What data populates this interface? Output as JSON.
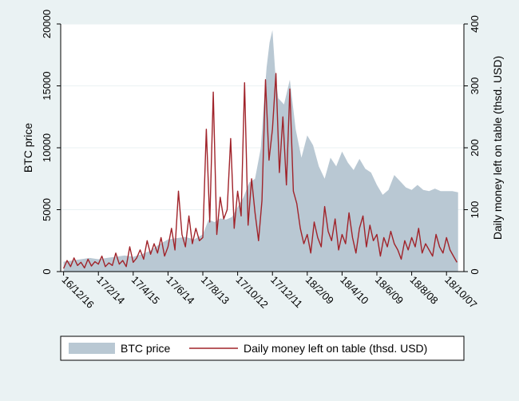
{
  "chart_data": {
    "type": "area+line",
    "title": "",
    "xlabel": "",
    "ylabel_left": "BTC price",
    "ylabel_right": "Daily money left on table (thsd. USD)",
    "ylim_left": [
      0,
      20000
    ],
    "ylim_right": [
      0,
      400
    ],
    "left_ticks": [
      0,
      5000,
      10000,
      15000,
      20000
    ],
    "right_ticks": [
      0,
      100,
      200,
      300,
      400
    ],
    "x_tick_labels": [
      "16/12/16",
      "17/2/14",
      "17/4/15",
      "17/6/14",
      "17/8/13",
      "17/10/12",
      "17/12/11",
      "18/2/09",
      "18/4/10",
      "18/6/09",
      "18/8/08",
      "18/10/07"
    ],
    "x_tick_positions": [
      0,
      60,
      120,
      180,
      240,
      300,
      360,
      420,
      480,
      540,
      600,
      660
    ],
    "x_range": [
      -5,
      690
    ],
    "legend": [
      "BTC price",
      "Daily money left on table (thsd. USD)"
    ],
    "legend_position": "bottom",
    "colors": {
      "area": "#b9c8d3",
      "line": "#a0232a",
      "background": "#eaf2f3",
      "plot": "#ffffff"
    },
    "series": [
      {
        "name": "BTC price",
        "axis": "left",
        "style": "area",
        "x": [
          0,
          15,
          30,
          45,
          60,
          75,
          90,
          105,
          120,
          135,
          150,
          165,
          180,
          195,
          210,
          225,
          240,
          250,
          260,
          270,
          280,
          290,
          300,
          310,
          320,
          330,
          340,
          345,
          350,
          355,
          360,
          365,
          370,
          380,
          390,
          400,
          410,
          420,
          430,
          440,
          450,
          460,
          470,
          480,
          490,
          500,
          510,
          520,
          530,
          540,
          550,
          560,
          570,
          580,
          590,
          600,
          610,
          620,
          630,
          640,
          650,
          660,
          670,
          680
        ],
        "values": [
          800,
          900,
          1000,
          1100,
          1000,
          1100,
          1200,
          1300,
          1200,
          1400,
          1700,
          2200,
          2600,
          2700,
          2800,
          2600,
          3000,
          4200,
          4000,
          4300,
          4200,
          4400,
          5200,
          6000,
          7200,
          7500,
          10000,
          13500,
          16500,
          18500,
          19500,
          16000,
          14000,
          13500,
          15500,
          11500,
          9200,
          11000,
          10200,
          8500,
          7500,
          9200,
          8500,
          9700,
          8800,
          8200,
          9100,
          8300,
          8000,
          7000,
          6200,
          6600,
          7800,
          7300,
          6800,
          6600,
          7000,
          6600,
          6500,
          6700,
          6500,
          6500,
          6500,
          6400
        ]
      },
      {
        "name": "Daily money left on table (thsd. USD)",
        "axis": "right",
        "style": "line",
        "x": [
          0,
          6,
          12,
          18,
          24,
          30,
          36,
          42,
          48,
          54,
          60,
          66,
          72,
          78,
          84,
          90,
          96,
          102,
          108,
          114,
          120,
          126,
          132,
          138,
          144,
          150,
          156,
          162,
          168,
          174,
          180,
          186,
          192,
          198,
          204,
          210,
          216,
          222,
          228,
          234,
          240,
          246,
          252,
          258,
          264,
          270,
          276,
          282,
          288,
          294,
          300,
          306,
          312,
          318,
          324,
          330,
          336,
          342,
          348,
          354,
          360,
          366,
          372,
          378,
          384,
          390,
          396,
          402,
          408,
          414,
          420,
          426,
          432,
          438,
          444,
          450,
          456,
          462,
          468,
          474,
          480,
          486,
          492,
          498,
          504,
          510,
          516,
          522,
          528,
          534,
          540,
          546,
          552,
          558,
          564,
          570,
          576,
          582,
          588,
          594,
          600,
          606,
          612,
          618,
          624,
          630,
          636,
          642,
          648,
          654,
          660,
          666,
          672,
          678
        ],
        "values": [
          5,
          18,
          8,
          22,
          10,
          15,
          6,
          20,
          9,
          16,
          12,
          25,
          8,
          14,
          10,
          30,
          12,
          18,
          8,
          40,
          15,
          22,
          35,
          20,
          50,
          28,
          45,
          30,
          55,
          25,
          40,
          70,
          35,
          130,
          60,
          40,
          90,
          45,
          70,
          50,
          55,
          230,
          80,
          290,
          60,
          120,
          85,
          100,
          215,
          70,
          130,
          90,
          305,
          75,
          150,
          95,
          50,
          115,
          310,
          180,
          230,
          320,
          160,
          250,
          140,
          295,
          130,
          110,
          70,
          45,
          60,
          30,
          80,
          55,
          40,
          105,
          65,
          50,
          85,
          35,
          60,
          45,
          95,
          55,
          30,
          70,
          90,
          40,
          75,
          50,
          60,
          25,
          55,
          40,
          65,
          45,
          35,
          20,
          50,
          35,
          55,
          40,
          70,
          30,
          45,
          35,
          25,
          60,
          40,
          30,
          55,
          35,
          25,
          15
        ]
      }
    ]
  }
}
